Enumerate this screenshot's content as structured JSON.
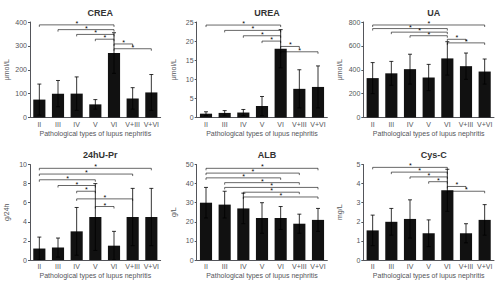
{
  "chart_data": [
    {
      "type": "bar",
      "title": "CREA",
      "ylabel": "μmol/L",
      "xlabel": "Pathological types of lupus nephritis",
      "categories": [
        "II",
        "III",
        "IV",
        "V",
        "VI",
        "V+III",
        "V+VI"
      ],
      "values": [
        75,
        100,
        100,
        55,
        270,
        80,
        105
      ],
      "errors": [
        65,
        55,
        70,
        20,
        85,
        45,
        75
      ],
      "ylim": [
        0,
        400
      ],
      "yticks": [
        0,
        100,
        200,
        300,
        400
      ],
      "color": "#111111",
      "grid": false,
      "annotations": [
        {
          "x": [
            "II",
            "VI"
          ],
          "y": 388,
          "text": "*"
        },
        {
          "x": [
            "III",
            "VI"
          ],
          "y": 368,
          "text": "*"
        },
        {
          "x": [
            "IV",
            "VI"
          ],
          "y": 348,
          "text": "*"
        },
        {
          "x": [
            "V",
            "VI"
          ],
          "y": 328,
          "text": "*"
        },
        {
          "x": [
            "VI",
            "V+III"
          ],
          "y": 308,
          "text": "*"
        },
        {
          "x": [
            "VI",
            "V+VI"
          ],
          "y": 288,
          "text": "*"
        }
      ]
    },
    {
      "type": "bar",
      "title": "UREA",
      "ylabel": "μmol/L",
      "xlabel": "Pathological types of lupus nephritis",
      "categories": [
        "II",
        "III",
        "IV",
        "V",
        "VI",
        "V+III",
        "V+VI"
      ],
      "values": [
        1.0,
        1.2,
        1.3,
        3.0,
        18.0,
        7.5,
        8.0
      ],
      "errors": [
        0.5,
        0.6,
        0.8,
        2.5,
        5.0,
        5.0,
        5.5
      ],
      "ylim": [
        0,
        25
      ],
      "yticks": [
        0,
        5,
        10,
        15,
        20,
        25
      ],
      "color": "#111111",
      "grid": false,
      "annotations": [
        {
          "x": [
            "II",
            "VI"
          ],
          "y": 24.2,
          "text": "*"
        },
        {
          "x": [
            "III",
            "VI"
          ],
          "y": 22.8,
          "text": "*"
        },
        {
          "x": [
            "IV",
            "VI"
          ],
          "y": 21.4,
          "text": "*"
        },
        {
          "x": [
            "V",
            "VI"
          ],
          "y": 20.0,
          "text": "*"
        },
        {
          "x": [
            "VI",
            "V+III"
          ],
          "y": 18.6,
          "text": "*"
        },
        {
          "x": [
            "VI",
            "V+VI"
          ],
          "y": 17.2,
          "text": "*"
        }
      ]
    },
    {
      "type": "bar",
      "title": "UA",
      "ylabel": "μmol/L",
      "xlabel": "Pathological types of lupus nephritis",
      "categories": [
        "II",
        "III",
        "IV",
        "V",
        "VI",
        "V+III",
        "V+VI"
      ],
      "values": [
        330,
        370,
        405,
        335,
        495,
        430,
        385
      ],
      "errors": [
        130,
        100,
        125,
        110,
        140,
        110,
        105
      ],
      "ylim": [
        0,
        800
      ],
      "yticks": [
        0,
        200,
        400,
        600,
        800
      ],
      "color": "#111111",
      "grid": false,
      "annotations": [
        {
          "x": [
            "II",
            "V+VI"
          ],
          "y": 775,
          "text": "*"
        },
        {
          "x": [
            "II",
            "VI"
          ],
          "y": 745,
          "text": "*"
        },
        {
          "x": [
            "III",
            "VI"
          ],
          "y": 715,
          "text": "*"
        },
        {
          "x": [
            "IV",
            "VI"
          ],
          "y": 685,
          "text": "*"
        },
        {
          "x": [
            "VI",
            "V+III"
          ],
          "y": 655,
          "text": "*"
        },
        {
          "x": [
            "VI",
            "V+VI"
          ],
          "y": 625,
          "text": "*"
        }
      ]
    },
    {
      "type": "bar",
      "title": "24hU-Pr",
      "ylabel": "g/24h",
      "xlabel": "Pathological types of lupus nephritis",
      "categories": [
        "II",
        "III",
        "IV",
        "V",
        "VI",
        "V+III",
        "V+VI"
      ],
      "values": [
        1.2,
        1.3,
        3.0,
        4.5,
        1.5,
        4.5,
        4.5
      ],
      "errors": [
        1.2,
        1.0,
        2.5,
        3.5,
        1.5,
        3.0,
        3.0
      ],
      "ylim": [
        0,
        10
      ],
      "yticks": [
        0,
        2,
        4,
        6,
        8,
        10
      ],
      "color": "#111111",
      "grid": false,
      "annotations": [
        {
          "x": [
            "II",
            "V+VI"
          ],
          "y": 9.6,
          "text": "*"
        },
        {
          "x": [
            "II",
            "V+III"
          ],
          "y": 9.0,
          "text": "*"
        },
        {
          "x": [
            "II",
            "V"
          ],
          "y": 8.4,
          "text": "*"
        },
        {
          "x": [
            "III",
            "V"
          ],
          "y": 7.8,
          "text": "*"
        },
        {
          "x": [
            "IV",
            "V"
          ],
          "y": 7.2,
          "text": "*"
        },
        {
          "x": [
            "IV",
            "V+III"
          ],
          "y": 6.4,
          "text": "*"
        },
        {
          "x": [
            "V",
            "VI"
          ],
          "y": 5.6,
          "text": "*"
        }
      ]
    },
    {
      "type": "bar",
      "title": "ALB",
      "ylabel": "g/L",
      "xlabel": "Pathological types of lupus nephritis",
      "categories": [
        "II",
        "III",
        "IV",
        "V",
        "VI",
        "V+III",
        "V+VI"
      ],
      "values": [
        30,
        29,
        27,
        22,
        22,
        19,
        21
      ],
      "errors": [
        8,
        7,
        8,
        8,
        6,
        5,
        6
      ],
      "ylim": [
        0,
        50
      ],
      "yticks": [
        0,
        10,
        20,
        30,
        40,
        50
      ],
      "color": "#111111",
      "grid": false,
      "annotations": [
        {
          "x": [
            "II",
            "V+VI"
          ],
          "y": 48,
          "text": "*"
        },
        {
          "x": [
            "II",
            "V+III"
          ],
          "y": 45.5,
          "text": "*"
        },
        {
          "x": [
            "II",
            "VI"
          ],
          "y": 43,
          "text": "*"
        },
        {
          "x": [
            "III",
            "V+III"
          ],
          "y": 40.5,
          "text": "*"
        },
        {
          "x": [
            "III",
            "V+VI"
          ],
          "y": 38,
          "text": "*"
        },
        {
          "x": [
            "IV",
            "V+III"
          ],
          "y": 35.5,
          "text": "*"
        },
        {
          "x": [
            "IV",
            "V+VI"
          ],
          "y": 33,
          "text": "*"
        }
      ]
    },
    {
      "type": "bar",
      "title": "Cys-C",
      "ylabel": "mg/L",
      "xlabel": "Pathological types of lupus nephritis",
      "categories": [
        "II",
        "III",
        "IV",
        "V",
        "VI",
        "V+III",
        "V+VI"
      ],
      "values": [
        1.55,
        2.0,
        2.15,
        1.4,
        3.65,
        1.4,
        2.1
      ],
      "errors": [
        0.8,
        0.7,
        1.0,
        0.7,
        1.1,
        0.5,
        0.8
      ],
      "ylim": [
        0,
        5
      ],
      "yticks": [
        0,
        1,
        2,
        3,
        4,
        5
      ],
      "color": "#111111",
      "grid": false,
      "annotations": [
        {
          "x": [
            "II",
            "VI"
          ],
          "y": 4.85,
          "text": "*"
        },
        {
          "x": [
            "III",
            "VI"
          ],
          "y": 4.6,
          "text": "*"
        },
        {
          "x": [
            "IV",
            "VI"
          ],
          "y": 4.35,
          "text": "*"
        },
        {
          "x": [
            "V",
            "VI"
          ],
          "y": 4.1,
          "text": "*"
        },
        {
          "x": [
            "VI",
            "V+III"
          ],
          "y": 3.85,
          "text": "*"
        },
        {
          "x": [
            "VI",
            "V+VI"
          ],
          "y": 3.6,
          "text": "*"
        }
      ]
    }
  ]
}
